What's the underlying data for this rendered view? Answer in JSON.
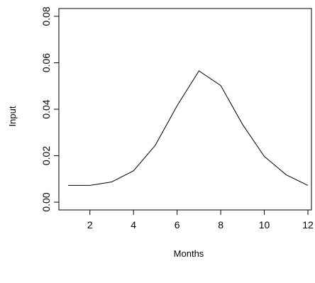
{
  "chart_data": {
    "type": "line",
    "title": "",
    "xlabel": "Months",
    "ylabel": "Input",
    "xlim": [
      1,
      12
    ],
    "ylim": [
      0,
      0.08
    ],
    "x_ticks": [
      2,
      4,
      6,
      8,
      10,
      12
    ],
    "x_tick_labels": [
      "2",
      "4",
      "6",
      "8",
      "10",
      "12"
    ],
    "y_ticks": [
      0,
      0.02,
      0.04,
      0.06,
      0.08
    ],
    "y_tick_labels": [
      "0.00",
      "0.02",
      "0.04",
      "0.06",
      "0.08"
    ],
    "grid": false,
    "legend": "none",
    "line_color": "#000000",
    "series": [
      {
        "x": [
          1,
          2,
          3,
          4,
          5,
          6,
          7,
          8,
          9,
          10,
          11,
          12
        ],
        "y": [
          0.0072,
          0.0072,
          0.0087,
          0.0135,
          0.0245,
          0.0415,
          0.0565,
          0.0502,
          0.0335,
          0.0197,
          0.0118,
          0.0072
        ]
      }
    ]
  }
}
